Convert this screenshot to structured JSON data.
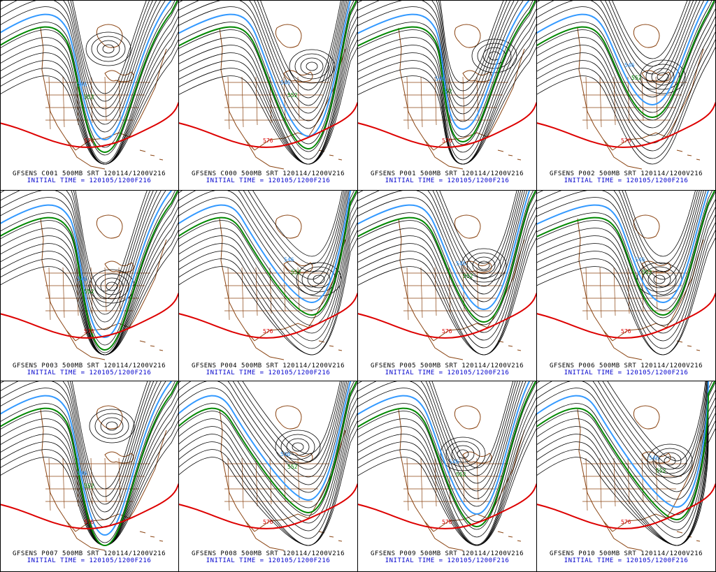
{
  "panels": [
    {
      "id": "C001",
      "title": "GFSENS C001 500MB SRT 120114/1200V216",
      "subtitle": "INITIAL TIME = 120105/1200F216",
      "labels": {
        "blue": "546",
        "green": "552",
        "red": "576"
      }
    },
    {
      "id": "C000",
      "title": "GFSENS C000 500MB SRT 120114/1200V216",
      "subtitle": "INITIAL TIME = 120105/1200F216",
      "labels": {
        "blue": "546",
        "green": "552",
        "red": "576"
      }
    },
    {
      "id": "P001",
      "title": "GFSENS P001 500MB SRT 120114/1200V216",
      "subtitle": "INITIAL TIME = 120105/1200F216",
      "labels": {
        "blue": "546",
        "green": "552",
        "red": "576"
      }
    },
    {
      "id": "P002",
      "title": "GFSENS P002 500MB SRT 120114/1200V216",
      "subtitle": "INITIAL TIME = 120105/1200F216",
      "labels": {
        "blue": "546",
        "green": "552",
        "red": "576"
      }
    },
    {
      "id": "P003",
      "title": "GFSENS P003 500MB SRT 120114/1200V216",
      "subtitle": "INITIAL TIME = 120105/1200F216",
      "labels": {
        "blue": "546",
        "green": "552",
        "red": "576"
      }
    },
    {
      "id": "P004",
      "title": "GFSENS P004 500MB SRT 120114/1200V216",
      "subtitle": "INITIAL TIME = 120105/1200F216",
      "labels": {
        "blue": "546",
        "green": "552",
        "red": "576"
      }
    },
    {
      "id": "P005",
      "title": "GFSENS P005 500MB SRT 120114/1200V216",
      "subtitle": "INITIAL TIME = 120105/1200F216",
      "labels": {
        "blue": "546",
        "green": "552",
        "red": "576"
      }
    },
    {
      "id": "P006",
      "title": "GFSENS P006 500MB SRT 120114/1200V216",
      "subtitle": "INITIAL TIME = 120105/1200F216",
      "labels": {
        "blue": "546",
        "green": "552",
        "red": "576"
      }
    },
    {
      "id": "P007",
      "title": "GFSENS P007 500MB SRT 120114/1200V216",
      "subtitle": "INITIAL TIME = 120105/1200F216",
      "labels": {
        "blue": "546",
        "green": "552",
        "red": "576"
      }
    },
    {
      "id": "P008",
      "title": "GFSENS P008 500MB SRT 120114/1200V216",
      "subtitle": "INITIAL TIME = 120105/1200F216",
      "labels": {
        "blue": "546",
        "green": "552",
        "red": "576"
      }
    },
    {
      "id": "P009",
      "title": "GFSENS P009 500MB SRT 120114/1200V216",
      "subtitle": "INITIAL TIME = 120105/1200F216",
      "labels": {
        "blue": "546",
        "green": "552",
        "red": "576"
      }
    },
    {
      "id": "P010",
      "title": "GFSENS P010 500MB SRT 120114/1200V216",
      "subtitle": "INITIAL TIME = 120105/1200F216",
      "labels": {
        "blue": "546",
        "green": "552",
        "red": "576"
      }
    }
  ],
  "colors": {
    "contour": "#000000",
    "contour_546": "#3399ff",
    "contour_552": "#008800",
    "contour_576": "#dd0000",
    "map_borders": "#8b4513",
    "title_text": "#000000",
    "subtitle_text": "#0000cc"
  }
}
